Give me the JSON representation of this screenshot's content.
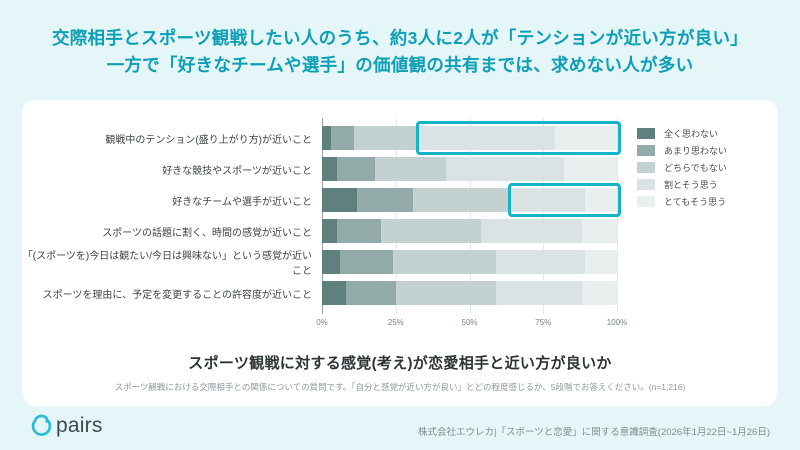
{
  "header": {
    "title_line1": "交際相手とスポーツ観戦したい人のうち、約3人に2人が「テンションが近い方が良い」",
    "title_line2": "一方で「好きなチームや選手」の価値観の共有までは、求めない人が多い"
  },
  "chart_data": {
    "type": "bar",
    "stacked": true,
    "orientation": "horizontal",
    "categories": [
      "観戦中のテンション(盛り上がり方)が近いこと",
      "好きな競技やスポーツが近いこと",
      "好きなチームや選手が近いこと",
      "スポーツの話題に割く、時間の感覚が近いこと",
      "「(スポーツを)今日は観たい/今日は興味ない」という感覚が近いこと",
      "スポーツを理由に、予定を変更することの許容度が近いこと"
    ],
    "series": [
      {
        "name": "全く思わない",
        "color": "#5e817f",
        "values": [
          3,
          5,
          12,
          5,
          6,
          8
        ]
      },
      {
        "name": "あまり思わない",
        "color": "#92aaa8",
        "values": [
          8,
          13,
          19,
          15,
          18,
          17
        ]
      },
      {
        "name": "どちらでもない",
        "color": "#c3d2d1",
        "values": [
          21,
          24,
          32,
          34,
          35,
          34
        ]
      },
      {
        "name": "割とそう思う",
        "color": "#d9e3e3",
        "values": [
          47,
          40,
          26,
          34,
          30,
          29
        ]
      },
      {
        "name": "とてもそう思う",
        "color": "#e9efef",
        "values": [
          21,
          18,
          11,
          12,
          11,
          12
        ]
      }
    ],
    "x_ticks": [
      "0%",
      "25%",
      "50%",
      "75%",
      "100%"
    ],
    "xlim": [
      0,
      100
    ],
    "grid": true,
    "legend_position": "right",
    "highlights": [
      {
        "category_index": 0,
        "segments": [
          "割とそう思う",
          "とてもそう思う"
        ],
        "color": "#14b3c8"
      },
      {
        "category_index": 2,
        "segments": [
          "割とそう思う",
          "とてもそう思う"
        ],
        "color": "#14b3c8"
      }
    ],
    "title": "スポーツ観戦に対する感覚(考え)が恋愛相手と近い方が良いか"
  },
  "subtitle": "スポーツ観戦に対する感覚(考え)が恋愛相手と近い方が良いか",
  "caption": "スポーツ観戦における交際相手との関係についての質問です。「自分と感覚が近い方が良い」とどの程度感じるか、5段階でお答えください。(n=1,216)",
  "footer": {
    "logo_text": "pairs",
    "source": "株式会社エウレカ|「スポーツと恋愛」に関する意識調査(2026年1月22日~1月26日)"
  },
  "colors": {
    "background": "#e5f6f8",
    "card": "#ffffff",
    "title": "#0c9fb5",
    "highlight": "#14b3c8",
    "logo": "#27bdd5"
  }
}
